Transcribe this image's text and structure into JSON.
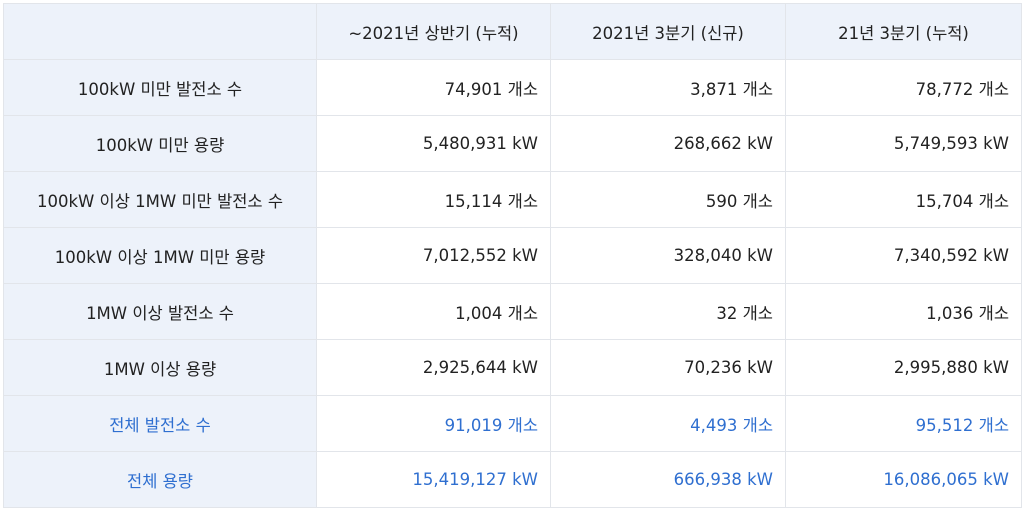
{
  "header": {
    "corner": "",
    "col1": "~2021년 상반기 (누적)",
    "col2": "2021년 3분기 (신규)",
    "col3": "21년 3분기 (누적)"
  },
  "rows": [
    {
      "label": "100kW 미만 발전소 수",
      "v1": "74,901 개소",
      "v2": "3,871 개소",
      "v3": "78,772 개소"
    },
    {
      "label": "100kW 미만 용량",
      "v1": "5,480,931 kW",
      "v2": "268,662 kW",
      "v3": "5,749,593 kW"
    },
    {
      "label": "100kW 이상 1MW 미만 발전소 수",
      "v1": "15,114 개소",
      "v2": "590 개소",
      "v3": "15,704 개소"
    },
    {
      "label": "100kW 이상 1MW 미만 용량",
      "v1": "7,012,552 kW",
      "v2": "328,040 kW",
      "v3": "7,340,592 kW"
    },
    {
      "label": "1MW 이상 발전소 수",
      "v1": "1,004 개소",
      "v2": "32 개소",
      "v3": "1,036 개소"
    },
    {
      "label": "1MW 이상 용량",
      "v1": "2,925,644 kW",
      "v2": "70,236 kW",
      "v3": "2,995,880 kW"
    },
    {
      "label": "전체 발전소 수",
      "v1": "91,019 개소",
      "v2": "4,493 개소",
      "v3": "95,512 개소"
    },
    {
      "label": "전체 용량",
      "v1": "15,419,127 kW",
      "v2": "666,938 kW",
      "v3": "16,086,065 kW"
    }
  ],
  "colors": {
    "header_bg": "#edf2fa",
    "total_text": "#2f6fd0",
    "border": "#e2e5ea"
  }
}
